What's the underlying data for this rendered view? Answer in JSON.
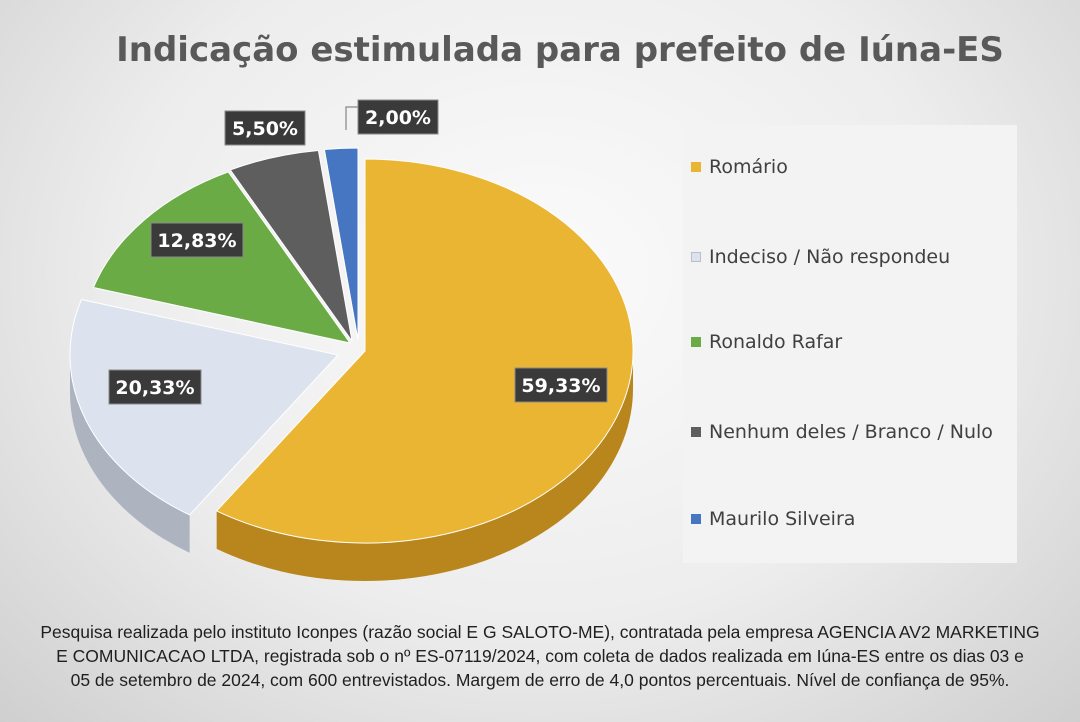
{
  "chart_data": {
    "type": "pie",
    "title": "Indicação estimulada para prefeito de Iúna-ES",
    "slices": [
      {
        "name": "Romário",
        "value": 59.33,
        "label": "59,33%",
        "color": "#e9b533"
      },
      {
        "name": "Indeciso / Não respondeu",
        "value": 20.33,
        "label": "20,33%",
        "color": "#dde3ee"
      },
      {
        "name": "Ronaldo Rafar",
        "value": 12.83,
        "label": "12,83%",
        "color": "#6aab45"
      },
      {
        "name": "Nenhum deles / Branco / Nulo",
        "value": 5.5,
        "label": "5,50%",
        "color": "#5e5e5e"
      },
      {
        "name": "Maurilo Silveira",
        "value": 2.0,
        "label": "2,00%",
        "color": "#4675c2"
      }
    ],
    "legend_position": "right",
    "three_d": true
  },
  "legend": {
    "items": [
      {
        "label": "Romário",
        "color": "#e9b533"
      },
      {
        "label": "Indeciso / Não respondeu",
        "color": "#dde3ee"
      },
      {
        "label": "Ronaldo Rafar",
        "color": "#6aab45"
      },
      {
        "label": "Nenhum deles / Branco / Nulo",
        "color": "#5e5e5e"
      },
      {
        "label": "Maurilo Silveira",
        "color": "#4675c2"
      }
    ]
  },
  "footnote": {
    "line1": "Pesquisa realizada pelo instituto Iconpes (razão social E G SALOTO-ME), contratada pela empresa AGENCIA AV2 MARKETING",
    "line2": "E COMUNICACAO LTDA, registrada sob o nº ES-07119/2024, com coleta de dados realizada em Iúna-ES entre os dias 03 e",
    "line3": "05 de setembro de 2024, com 600 entrevistados. Margem de erro de 4,0 pontos percentuais. Nível de confiança de 95%."
  }
}
